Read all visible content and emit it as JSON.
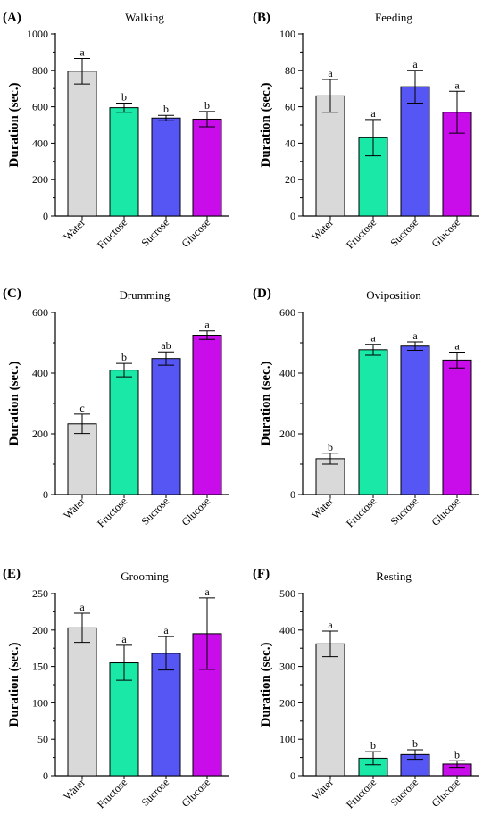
{
  "colors": {
    "Water": "#d9d9d9",
    "Fructose": "#19e8a6",
    "Sucrose": "#5656f5",
    "Glucose": "#c80cea"
  },
  "chart_data": [
    {
      "type": "bar",
      "panel": "(A)",
      "title": "Walking",
      "ylabel": "Duration (sec.)",
      "xlabel": "",
      "categories": [
        "Water",
        "Fructose",
        "Sucrose",
        "Glucose"
      ],
      "values": [
        795,
        595,
        538,
        532
      ],
      "errors": [
        70,
        25,
        15,
        42
      ],
      "significance": [
        "a",
        "b",
        "b",
        "b"
      ],
      "ylim": [
        0,
        1000
      ],
      "yticks": [
        0,
        200,
        400,
        600,
        800,
        1000
      ],
      "yticks_minor": true,
      "grid": false
    },
    {
      "type": "bar",
      "panel": "(B)",
      "title": "Feeding",
      "ylabel": "Duration (sec.)",
      "xlabel": "",
      "categories": [
        "Water",
        "Fructose",
        "Sucrose",
        "Glucose"
      ],
      "values": [
        66,
        43,
        71,
        57
      ],
      "errors": [
        9,
        10,
        9,
        11.5
      ],
      "significance": [
        "a",
        "a",
        "a",
        "a"
      ],
      "ylim": [
        0,
        100
      ],
      "yticks": [
        0,
        20,
        40,
        60,
        80,
        100
      ],
      "yticks_minor": true,
      "grid": false
    },
    {
      "type": "bar",
      "panel": "(C)",
      "title": "Drumming",
      "ylabel": "Duration (sec.)",
      "xlabel": "",
      "categories": [
        "Water",
        "Fructose",
        "Sucrose",
        "Glucose"
      ],
      "values": [
        233,
        410,
        448,
        525
      ],
      "errors": [
        32,
        22,
        22,
        14
      ],
      "significance": [
        "c",
        "b",
        "ab",
        "a"
      ],
      "ylim": [
        0,
        600
      ],
      "yticks": [
        0,
        200,
        400,
        600
      ],
      "yticks_minor": true,
      "grid": false
    },
    {
      "type": "bar",
      "panel": "(D)",
      "title": "Oviposition",
      "ylabel": "Duration (sec.)",
      "xlabel": "",
      "categories": [
        "Water",
        "Fructose",
        "Sucrose",
        "Glucose"
      ],
      "values": [
        118,
        477,
        489,
        443
      ],
      "errors": [
        18,
        18,
        14,
        26
      ],
      "significance": [
        "b",
        "a",
        "a",
        "a"
      ],
      "ylim": [
        0,
        600
      ],
      "yticks": [
        0,
        200,
        400,
        600
      ],
      "yticks_minor": true,
      "grid": false
    },
    {
      "type": "bar",
      "panel": "(E)",
      "title": "Grooming",
      "ylabel": "Duration (sec.)",
      "xlabel": "",
      "categories": [
        "Water",
        "Fructose",
        "Sucrose",
        "Glucose"
      ],
      "values": [
        203,
        155,
        168,
        195
      ],
      "errors": [
        20,
        24,
        23,
        49
      ],
      "significance": [
        "a",
        "a",
        "a",
        "a"
      ],
      "ylim": [
        0,
        250
      ],
      "yticks": [
        0,
        50,
        100,
        150,
        200,
        250
      ],
      "yticks_minor": true,
      "grid": false
    },
    {
      "type": "bar",
      "panel": "(F)",
      "title": "Resting",
      "ylabel": "Duration (sec.)",
      "xlabel": "",
      "categories": [
        "Water",
        "Fructose",
        "Sucrose",
        "Glucose"
      ],
      "values": [
        362,
        48,
        58,
        32
      ],
      "errors": [
        35,
        18,
        13,
        9
      ],
      "significance": [
        "a",
        "b",
        "b",
        "b"
      ],
      "ylim": [
        0,
        500
      ],
      "yticks": [
        0,
        100,
        200,
        300,
        400,
        500
      ],
      "yticks_minor": true,
      "grid": false
    }
  ]
}
